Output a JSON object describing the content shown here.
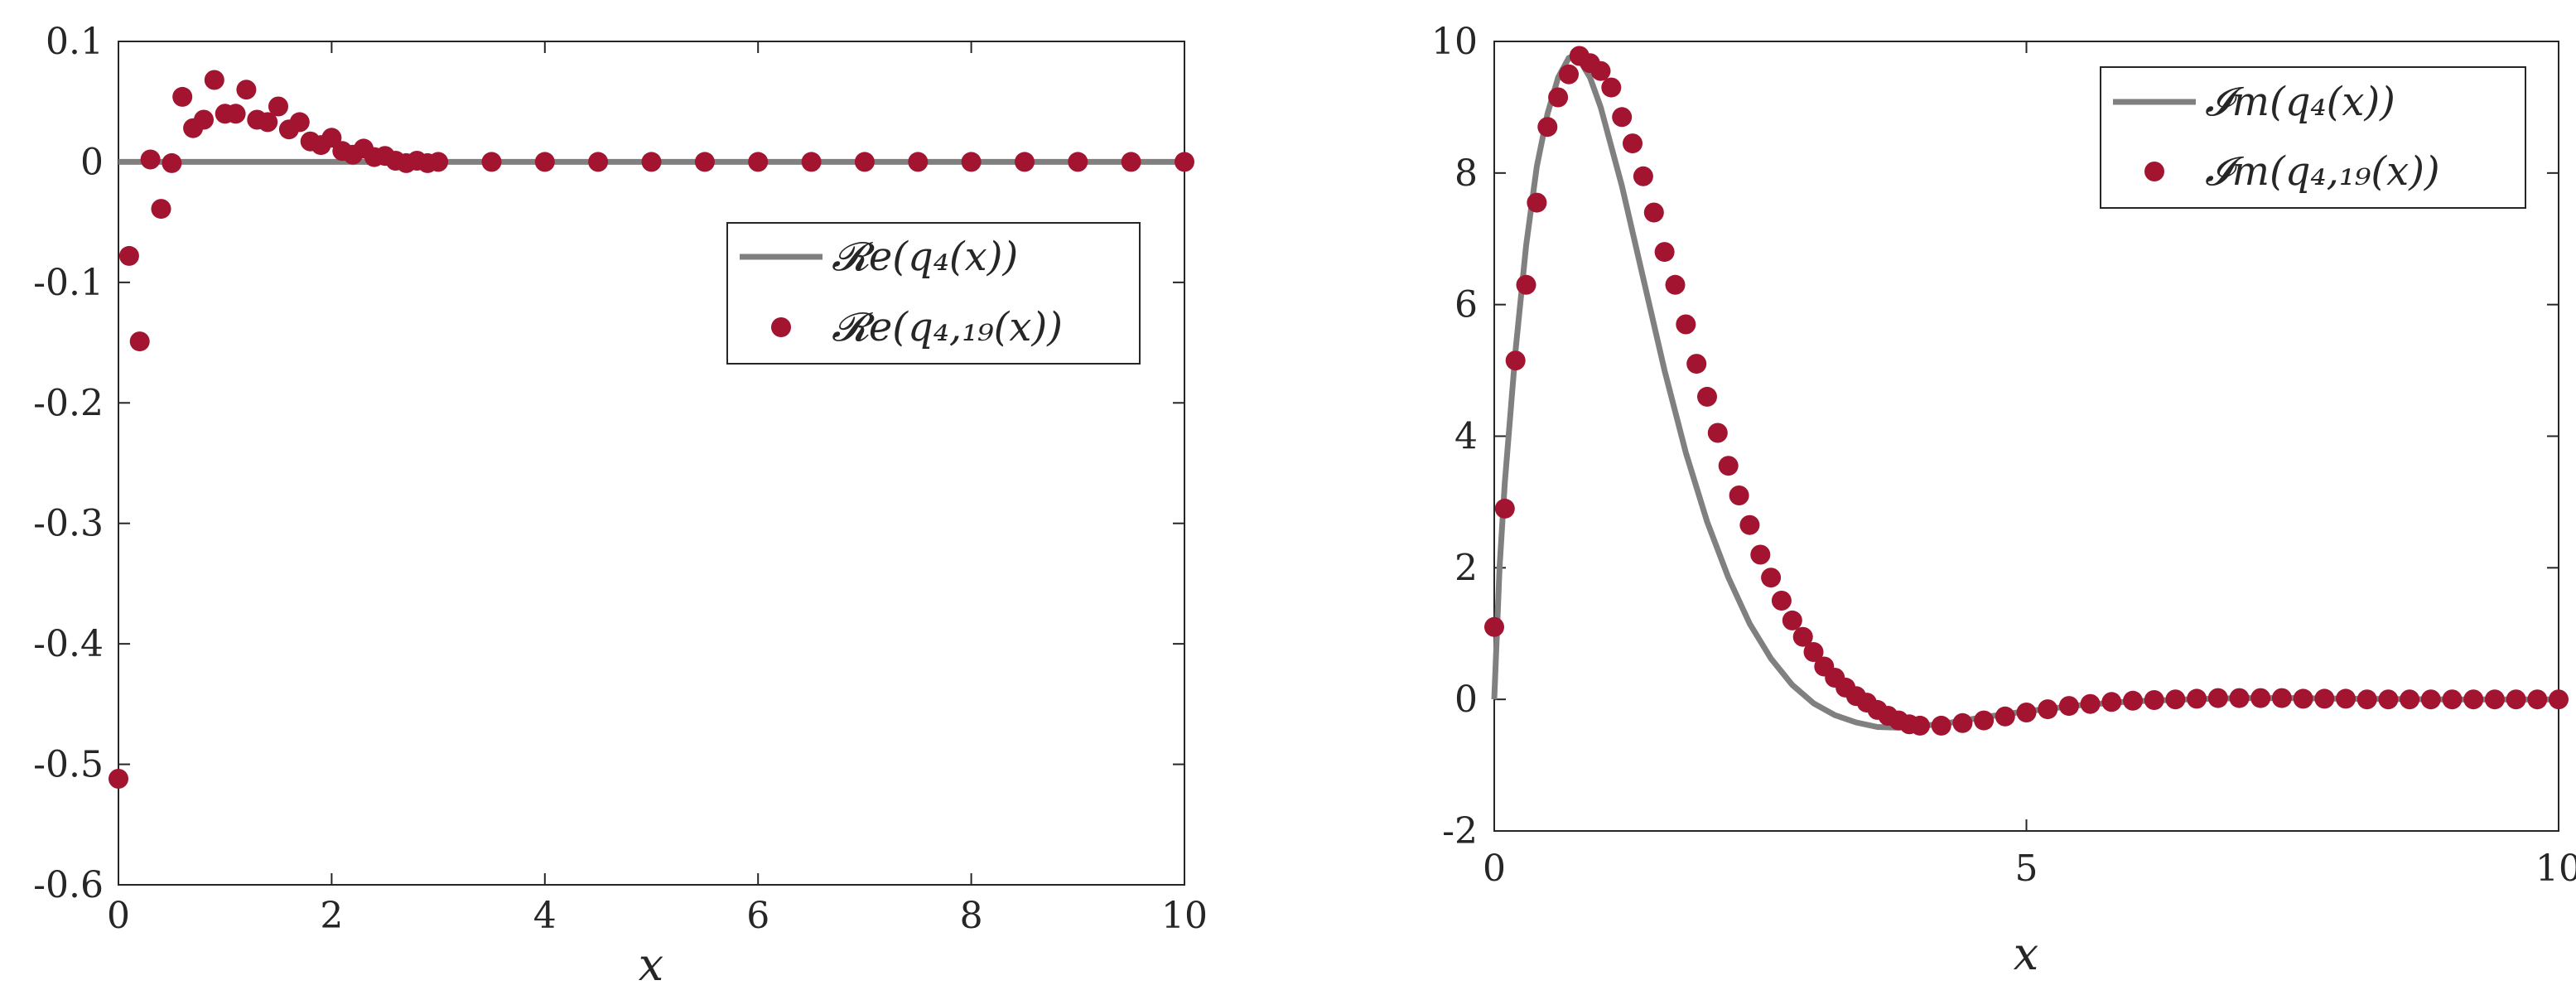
{
  "colors": {
    "model_line": "#808080",
    "samples": "#A2142F",
    "axes": "#262626",
    "background": "#ffffff"
  },
  "chart_data": [
    {
      "type": "line",
      "xlabel": "x",
      "ylabel": "",
      "xlim": [
        0,
        10
      ],
      "ylim": [
        -0.6,
        0.1
      ],
      "xticks": [
        "0",
        "2",
        "4",
        "6",
        "8",
        "10"
      ],
      "yticks": [
        "0.1",
        "0",
        "-0.1",
        "-0.2",
        "-0.3",
        "-0.4",
        "-0.5",
        "-0.6"
      ],
      "legend_position": "upper-right, below the top",
      "series": [
        {
          "name": "Re(q4(x))",
          "kind": "line",
          "x": [
            0,
            10
          ],
          "y": [
            0,
            0
          ]
        },
        {
          "name": "Re(q4,19(x))",
          "kind": "markers",
          "x": [
            0.0,
            0.1,
            0.2,
            0.3,
            0.4,
            0.5,
            0.6,
            0.7,
            0.8,
            0.9,
            1.0,
            1.1,
            1.2,
            1.3,
            1.4,
            1.5,
            1.6,
            1.7,
            1.8,
            1.9,
            2.0,
            2.1,
            2.2,
            2.3,
            2.4,
            2.5,
            2.6,
            2.7,
            2.8,
            2.9,
            3.0,
            3.5,
            4.0,
            4.5,
            5.0,
            5.5,
            6.0,
            6.5,
            7.0,
            7.5,
            8.0,
            8.5,
            9.0,
            9.5,
            10.0
          ],
          "y": [
            -0.512,
            -0.078,
            -0.149,
            0.002,
            -0.039,
            -0.001,
            0.054,
            0.028,
            0.035,
            0.068,
            0.04,
            0.04,
            0.06,
            0.035,
            0.033,
            0.046,
            0.027,
            0.033,
            0.017,
            0.014,
            0.02,
            0.009,
            0.006,
            0.011,
            0.004,
            0.005,
            0.001,
            -0.001,
            0.001,
            -0.001,
            0.0,
            0.0,
            0.0,
            0.0,
            0.0,
            0.0,
            0.0,
            0.0,
            0.0,
            0.0,
            0.0,
            0.0,
            0.0,
            0.0,
            0.0
          ]
        }
      ]
    },
    {
      "type": "line",
      "xlabel": "x",
      "ylabel": "",
      "xlim": [
        0,
        10
      ],
      "ylim": [
        -2,
        10
      ],
      "xticks": [
        "0",
        "5",
        "10"
      ],
      "yticks": [
        "10",
        "8",
        "6",
        "4",
        "2",
        "0",
        "-2"
      ],
      "legend_position": "top-right",
      "series": [
        {
          "name": "Im(q4(x))",
          "kind": "line",
          "x": [
            0.0,
            0.05,
            0.1,
            0.2,
            0.3,
            0.4,
            0.5,
            0.6,
            0.7,
            0.75,
            0.8,
            0.9,
            1.0,
            1.2,
            1.4,
            1.6,
            1.8,
            2.0,
            2.2,
            2.4,
            2.6,
            2.8,
            3.0,
            3.2,
            3.4,
            3.6,
            3.8,
            4.0,
            4.3,
            4.6,
            5.0,
            5.5,
            6.0,
            6.5,
            7.0,
            7.5,
            8.0,
            9.0,
            10.0
          ],
          "y": [
            0.0,
            2.0,
            3.3,
            5.3,
            6.9,
            8.1,
            8.9,
            9.45,
            9.75,
            9.78,
            9.72,
            9.45,
            9.0,
            7.8,
            6.4,
            5.0,
            3.75,
            2.7,
            1.85,
            1.15,
            0.62,
            0.22,
            -0.06,
            -0.24,
            -0.35,
            -0.42,
            -0.43,
            -0.41,
            -0.35,
            -0.27,
            -0.18,
            -0.09,
            -0.03,
            0.0,
            0.02,
            0.02,
            0.01,
            0.0,
            0.0
          ]
        },
        {
          "name": "Im(q4,19(x))",
          "kind": "markers",
          "x": [
            0.0,
            0.1,
            0.2,
            0.3,
            0.4,
            0.5,
            0.6,
            0.7,
            0.8,
            0.9,
            1.0,
            1.1,
            1.2,
            1.3,
            1.4,
            1.5,
            1.6,
            1.7,
            1.8,
            1.9,
            2.0,
            2.1,
            2.2,
            2.3,
            2.4,
            2.5,
            2.6,
            2.7,
            2.8,
            2.9,
            3.0,
            3.1,
            3.2,
            3.3,
            3.4,
            3.5,
            3.6,
            3.7,
            3.8,
            3.9,
            4.0,
            4.2,
            4.4,
            4.6,
            4.8,
            5.0,
            5.2,
            5.4,
            5.6,
            5.8,
            6.0,
            6.2,
            6.4,
            6.6,
            6.8,
            7.0,
            7.2,
            7.4,
            7.6,
            7.8,
            8.0,
            8.2,
            8.4,
            8.6,
            8.8,
            9.0,
            9.2,
            9.4,
            9.6,
            9.8,
            10.0
          ],
          "y": [
            1.1,
            2.9,
            5.15,
            6.3,
            7.55,
            8.7,
            9.15,
            9.5,
            9.78,
            9.67,
            9.55,
            9.3,
            8.85,
            8.45,
            7.95,
            7.4,
            6.8,
            6.3,
            5.7,
            5.1,
            4.6,
            4.05,
            3.55,
            3.1,
            2.65,
            2.2,
            1.85,
            1.5,
            1.2,
            0.95,
            0.72,
            0.5,
            0.33,
            0.18,
            0.05,
            -0.05,
            -0.16,
            -0.25,
            -0.32,
            -0.38,
            -0.4,
            -0.4,
            -0.36,
            -0.32,
            -0.26,
            -0.2,
            -0.15,
            -0.1,
            -0.07,
            -0.04,
            -0.02,
            -0.01,
            0.0,
            0.01,
            0.02,
            0.02,
            0.02,
            0.02,
            0.01,
            0.01,
            0.01,
            0.0,
            0.0,
            0.0,
            0.0,
            0.0,
            0.0,
            0.0,
            0.0,
            0.0,
            0.0
          ]
        }
      ]
    }
  ],
  "legend_labels": [
    [
      "𝓡e(q₄(x))",
      "𝓡e(q₄,₁₉(x))"
    ],
    [
      "𝓘m(q₄(x))",
      "𝓘m(q₄,₁₉(x))"
    ]
  ]
}
